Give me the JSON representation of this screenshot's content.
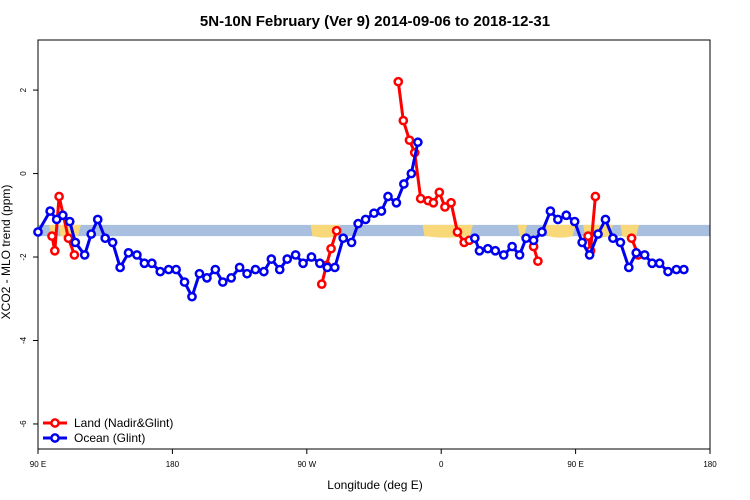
{
  "chart_data": {
    "type": "line",
    "title": "5N-10N February (Ver 9)   2014-09-06 to 2018-12-31",
    "xlabel": "Longitude (deg E)",
    "ylabel": "XCO2 - MLO trend (ppm)",
    "xlim": [
      90,
      450
    ],
    "ylim": [
      -6.6,
      3.2
    ],
    "x_ticks": [
      {
        "value": 90,
        "label": "90 E"
      },
      {
        "value": 180,
        "label": "180"
      },
      {
        "value": 270,
        "label": "90 W"
      },
      {
        "value": 360,
        "label": "0"
      },
      {
        "value": 450,
        "label": "90 E"
      },
      {
        "value": 540,
        "label": "180"
      }
    ],
    "x_ticks_visible": [
      90,
      162,
      234,
      306,
      378,
      450
    ],
    "y_ticks": [
      {
        "value": -6,
        "label": "-6"
      },
      {
        "value": -4,
        "label": "-4"
      },
      {
        "value": -2,
        "label": "-2"
      },
      {
        "value": 0,
        "label": "0"
      },
      {
        "value": 2,
        "label": "2"
      }
    ],
    "land_band": {
      "ymin": -1.5,
      "ymax": -1.23,
      "ocean_color": "#a8bfe0",
      "land_color": "#f8d878"
    },
    "series": [
      {
        "name": "Land (Nadir&Glint)",
        "color": "#ff0000",
        "points": [
          [
            97.5,
            -1.5
          ],
          [
            99.0,
            -1.85
          ],
          [
            101.3,
            -0.55
          ],
          [
            106.3,
            -1.55
          ],
          [
            109.5,
            -1.95
          ],
          [
            242.0,
            -2.65
          ],
          [
            244.5,
            -2.2
          ],
          [
            247.0,
            -1.8
          ],
          [
            250.0,
            -1.37
          ],
          [
            283.0,
            2.2
          ],
          [
            285.7,
            1.27
          ],
          [
            289.0,
            0.8
          ],
          [
            291.8,
            0.5
          ],
          [
            295.0,
            -0.6
          ],
          [
            299.0,
            -0.65
          ],
          [
            301.8,
            -0.7
          ],
          [
            305.0,
            -0.45
          ],
          [
            308.0,
            -0.8
          ],
          [
            311.3,
            -0.7
          ],
          [
            314.7,
            -1.4
          ],
          [
            318.3,
            -1.65
          ],
          [
            321.0,
            -1.6
          ],
          [
            355.5,
            -1.75
          ],
          [
            357.8,
            -2.1
          ],
          [
            384.7,
            -1.5
          ],
          [
            386.0,
            -1.85
          ],
          [
            388.6,
            -0.55
          ],
          [
            408.0,
            -1.55
          ],
          [
            411.5,
            -1.95
          ]
        ]
      },
      {
        "name": "Ocean (Glint)",
        "color": "#0000ee",
        "points": [
          [
            90.0,
            -1.4
          ],
          [
            96.5,
            -0.9
          ],
          [
            100.0,
            -1.1
          ],
          [
            103.3,
            -1.0
          ],
          [
            107.0,
            -1.15
          ],
          [
            110.0,
            -1.65
          ],
          [
            115.0,
            -1.95
          ],
          [
            118.5,
            -1.45
          ],
          [
            122.0,
            -1.1
          ],
          [
            126.0,
            -1.55
          ],
          [
            130.0,
            -1.65
          ],
          [
            134.0,
            -2.25
          ],
          [
            138.5,
            -1.9
          ],
          [
            143.0,
            -1.95
          ],
          [
            147.0,
            -2.15
          ],
          [
            151.0,
            -2.15
          ],
          [
            155.5,
            -2.35
          ],
          [
            160.0,
            -2.3
          ],
          [
            164.0,
            -2.3
          ],
          [
            168.5,
            -2.6
          ],
          [
            172.5,
            -2.95
          ],
          [
            176.5,
            -2.4
          ],
          [
            180.5,
            -2.5
          ],
          [
            185.0,
            -2.3
          ],
          [
            189.0,
            -2.6
          ],
          [
            193.5,
            -2.5
          ],
          [
            198.0,
            -2.25
          ],
          [
            202.0,
            -2.4
          ],
          [
            206.5,
            -2.3
          ],
          [
            211.0,
            -2.35
          ],
          [
            215.0,
            -2.05
          ],
          [
            219.5,
            -2.3
          ],
          [
            223.5,
            -2.05
          ],
          [
            228.0,
            -1.95
          ],
          [
            232.0,
            -2.15
          ],
          [
            236.5,
            -2.0
          ],
          [
            241.0,
            -2.15
          ],
          [
            245.0,
            -2.25
          ],
          [
            249.0,
            -2.25
          ],
          [
            253.5,
            -1.55
          ],
          [
            258.0,
            -1.65
          ],
          [
            261.5,
            -1.2
          ],
          [
            265.5,
            -1.1
          ],
          [
            270.0,
            -0.95
          ],
          [
            274.0,
            -0.9
          ],
          [
            277.5,
            -0.55
          ],
          [
            282.0,
            -0.7
          ],
          [
            286.0,
            -0.25
          ],
          [
            290.0,
            0.0
          ],
          [
            293.5,
            0.75
          ],
          [
            324.0,
            -1.55
          ],
          [
            326.5,
            -1.85
          ],
          [
            331.0,
            -1.8
          ],
          [
            335.0,
            -1.85
          ],
          [
            339.5,
            -1.95
          ],
          [
            344.0,
            -1.75
          ],
          [
            348.0,
            -1.95
          ],
          [
            351.5,
            -1.55
          ],
          [
            355.5,
            -1.6
          ],
          [
            360.0,
            -1.4
          ],
          [
            364.5,
            -0.9
          ],
          [
            368.5,
            -1.1
          ],
          [
            373.0,
            -1.0
          ],
          [
            377.5,
            -1.15
          ],
          [
            381.5,
            -1.65
          ],
          [
            385.5,
            -1.95
          ],
          [
            390.0,
            -1.45
          ],
          [
            394.0,
            -1.1
          ],
          [
            398.0,
            -1.55
          ],
          [
            402.0,
            -1.65
          ],
          [
            406.5,
            -2.25
          ],
          [
            410.5,
            -1.9
          ],
          [
            415.0,
            -1.95
          ],
          [
            419.0,
            -2.15
          ],
          [
            423.0,
            -2.15
          ],
          [
            427.5,
            -2.35
          ],
          [
            432.0,
            -2.3
          ],
          [
            436.0,
            -2.3
          ]
        ]
      }
    ],
    "legend": {
      "position": "bottom-left",
      "entries": [
        "Land (Nadir&Glint)",
        "Ocean (Glint)"
      ]
    },
    "grid": false
  }
}
